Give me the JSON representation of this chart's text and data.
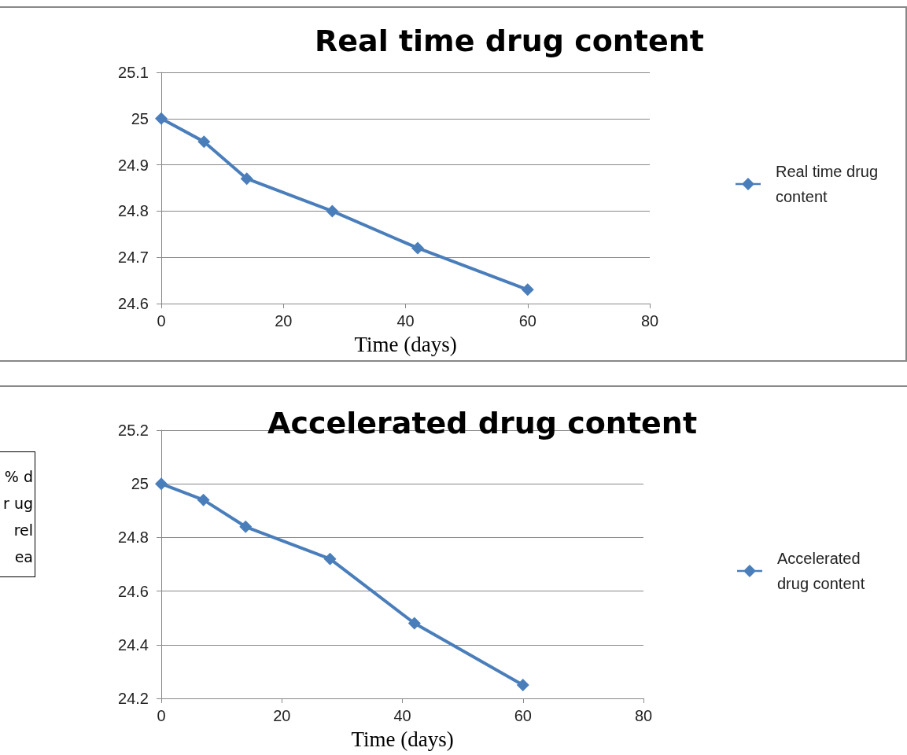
{
  "chart_data": [
    {
      "type": "line",
      "title": "Real time drug content",
      "xlabel": "Time (days)",
      "x": [
        0,
        7,
        14,
        28,
        42,
        60
      ],
      "series": [
        {
          "name": "Real time drug content",
          "color": "#4a7ebb",
          "values": [
            25,
            24.95,
            24.87,
            24.8,
            24.72,
            24.63
          ]
        }
      ],
      "xlim": [
        0,
        80
      ],
      "xticks": [
        0,
        20,
        40,
        60,
        80
      ],
      "ylim": [
        24.6,
        25.1
      ],
      "yticks": [
        24.6,
        24.7,
        24.8,
        24.9,
        25,
        25.1
      ],
      "grid": "y",
      "legend": "right",
      "marker": "diamond",
      "line_style": "solid"
    },
    {
      "type": "line",
      "title": "Accelerated drug content",
      "xlabel": "Time (days)",
      "ylabel": "% dr ug rel ea",
      "x": [
        0,
        7,
        14,
        28,
        42,
        60
      ],
      "series": [
        {
          "name": "Accelerated drug content",
          "color": "#4a7ebb",
          "values": [
            25,
            24.94,
            24.84,
            24.72,
            24.48,
            24.25
          ]
        }
      ],
      "xlim": [
        0,
        80
      ],
      "xticks": [
        0,
        20,
        40,
        60,
        80
      ],
      "ylim": [
        24.2,
        25.2
      ],
      "yticks": [
        24.2,
        24.4,
        24.6,
        24.8,
        25,
        25.2
      ],
      "grid": "y",
      "legend": "right",
      "marker": "diamond",
      "line_style": "solid"
    }
  ]
}
